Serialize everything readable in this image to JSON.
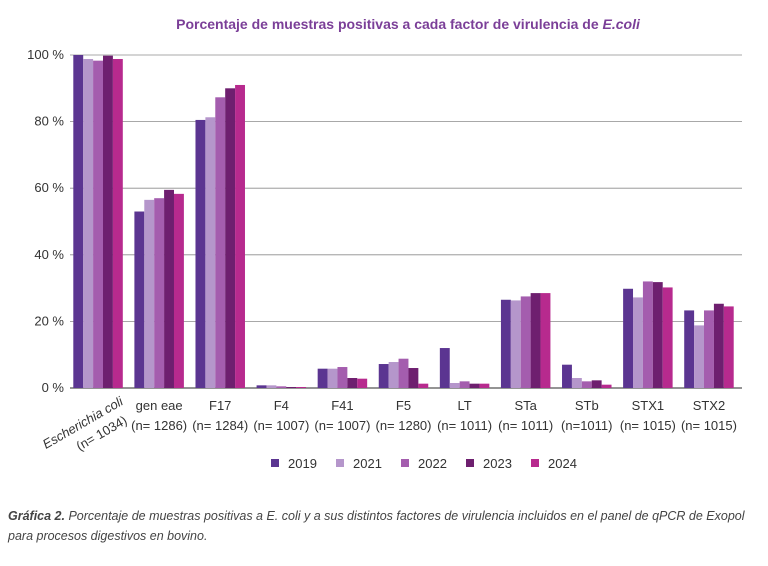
{
  "chart_data": {
    "type": "bar",
    "title_main": "Porcentaje de muestras positivas a cada factor de virulencia de ",
    "title_emph": "E.coli",
    "ylim": [
      0,
      100
    ],
    "y_ticks": [
      "0 %",
      "20 %",
      "40 %",
      "60 %",
      "80 %",
      "100 %"
    ],
    "y_tick_values": [
      0,
      20,
      40,
      60,
      80,
      100
    ],
    "grid": true,
    "legend_position": "bottom",
    "categories": [
      {
        "name": "Escherichia coli",
        "n": "(n= 1034)"
      },
      {
        "name": "gen eae",
        "n": "(n= 1286)"
      },
      {
        "name": "F17",
        "n": "(n= 1284)"
      },
      {
        "name": "F4",
        "n": "(n= 1007)"
      },
      {
        "name": "F41",
        "n": "(n= 1007)"
      },
      {
        "name": "F5",
        "n": "(n= 1280)"
      },
      {
        "name": "LT",
        "n": "(n= 1011)"
      },
      {
        "name": "STa",
        "n": "(n= 1011)"
      },
      {
        "name": "STb",
        "n": "(n=1011)"
      },
      {
        "name": "STX1",
        "n": "(n= 1015)"
      },
      {
        "name": "STX2",
        "n": "(n= 1015)"
      }
    ],
    "series": [
      {
        "name": "2019",
        "color": "#5b3591",
        "values": [
          100,
          53,
          80.5,
          0.8,
          5.8,
          7.2,
          12,
          26.5,
          7,
          29.8,
          23.3
        ]
      },
      {
        "name": "2021",
        "color": "#b596cb",
        "values": [
          98.8,
          56.5,
          81.3,
          0.8,
          5.8,
          7.8,
          1.5,
          26.3,
          3,
          27.2,
          18.8
        ]
      },
      {
        "name": "2022",
        "color": "#a45dae",
        "values": [
          98.3,
          57,
          87.3,
          0.5,
          6.3,
          8.8,
          2,
          27.5,
          2,
          32,
          23.3
        ]
      },
      {
        "name": "2023",
        "color": "#6e1f6f",
        "values": [
          99.8,
          59.5,
          90,
          0.3,
          3,
          6,
          1.3,
          28.5,
          2.3,
          31.8,
          25.3
        ]
      },
      {
        "name": "2024",
        "color": "#b72a8e",
        "values": [
          98.8,
          58.3,
          91,
          0.3,
          2.8,
          1.3,
          1.3,
          28.5,
          1,
          30.2,
          24.5
        ]
      }
    ]
  },
  "caption": {
    "label": "Gráfica 2.",
    "text": " Porcentaje de muestras positivas a E. coli y a sus distintos factores de virulencia incluidos en el panel de qPCR de Exopol para procesos digestivos en bovino."
  }
}
